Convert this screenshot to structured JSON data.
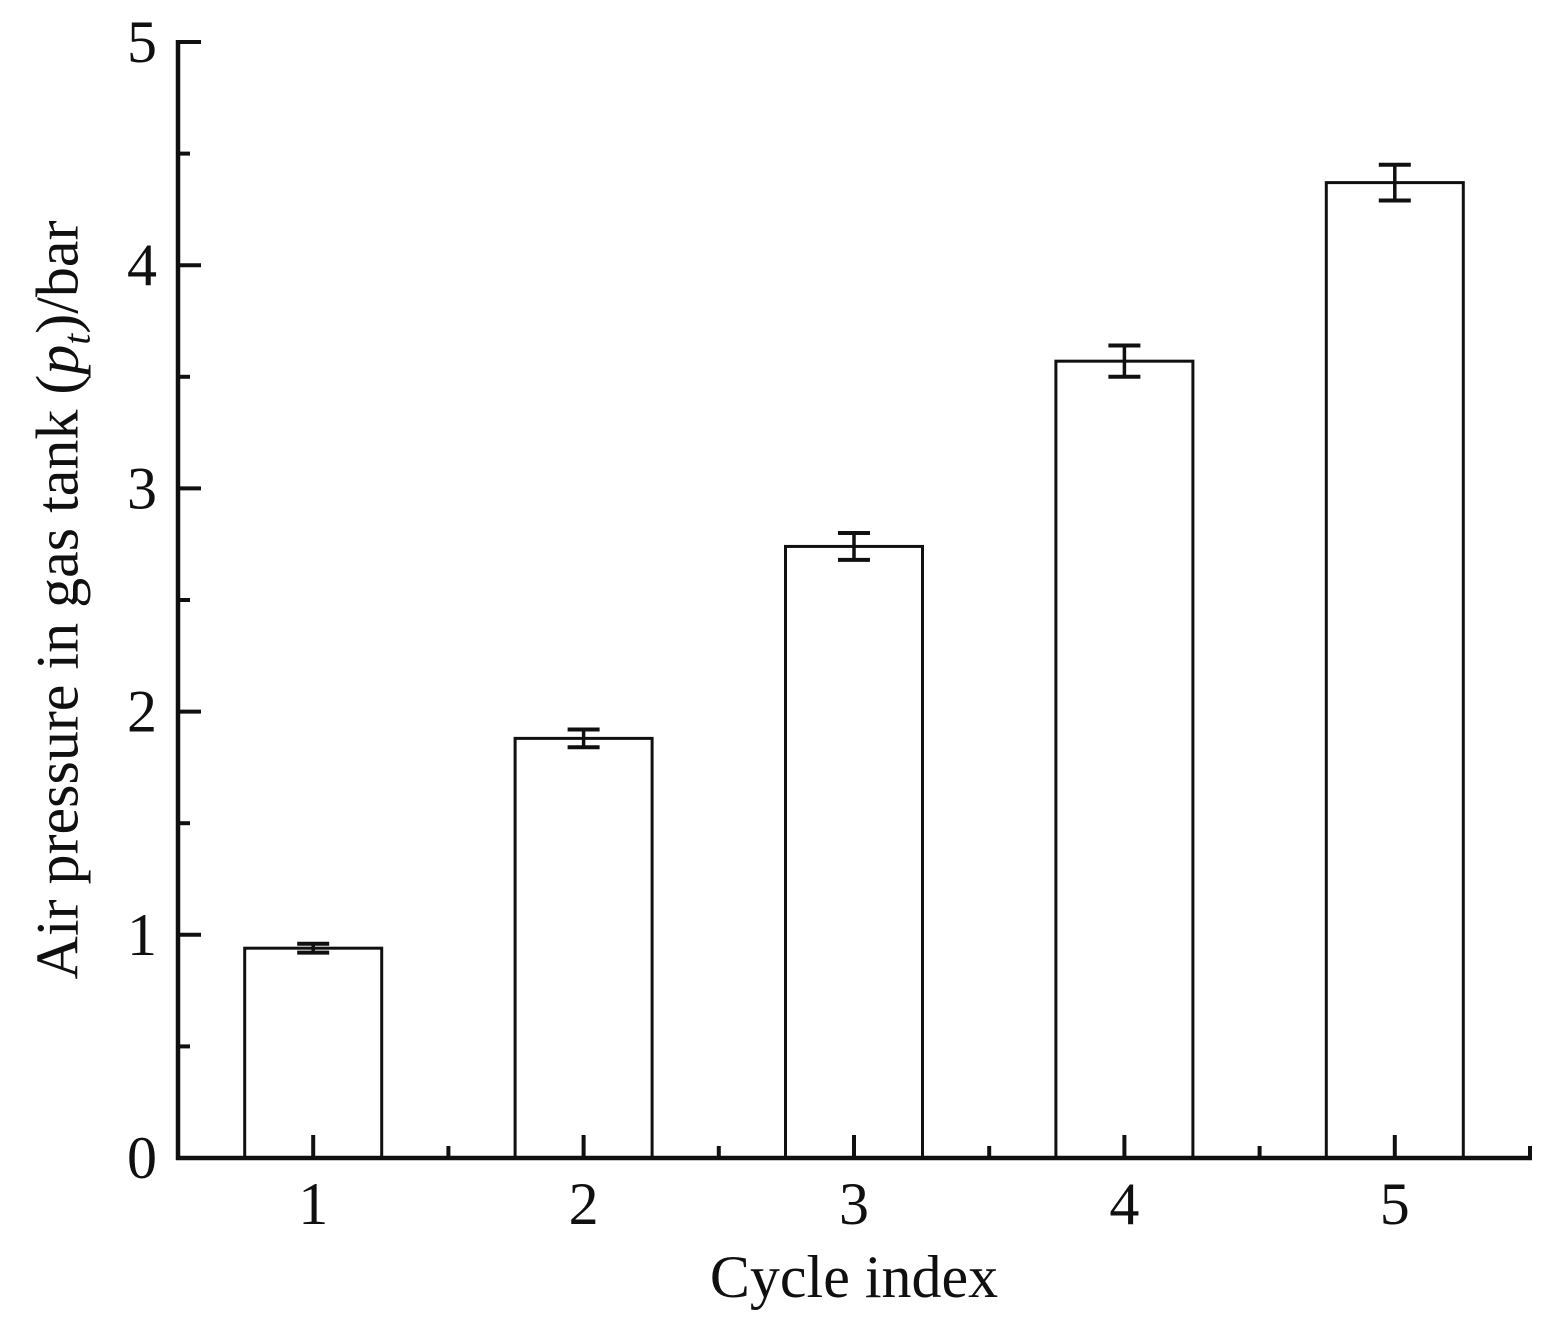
{
  "figure": {
    "background": "#ffffff",
    "ink_color": "#101010"
  },
  "chart_data": {
    "type": "bar",
    "title": "",
    "categories": [
      "1",
      "2",
      "3",
      "4",
      "5"
    ],
    "values": [
      0.94,
      1.88,
      2.74,
      3.57,
      4.37
    ],
    "error_bars": [
      0.02,
      0.04,
      0.06,
      0.07,
      0.08
    ],
    "xlabel": "Cycle index",
    "ylabel": "Air pressure in gas tank (p_t)/bar",
    "ylabel_parts": {
      "prefix": "Air pressure in gas tank (",
      "symbol": "p",
      "subscript": "t",
      "suffix": ")/bar"
    },
    "ylim": [
      0,
      5
    ],
    "y_major_ticks": [
      0,
      1,
      2,
      3,
      4,
      5
    ],
    "y_minor_step": 0.5,
    "x_minor_ticks_between_categories": true,
    "bar_fill": "#ffffff",
    "bar_stroke": "#101010",
    "grid": false,
    "legend": null
  }
}
